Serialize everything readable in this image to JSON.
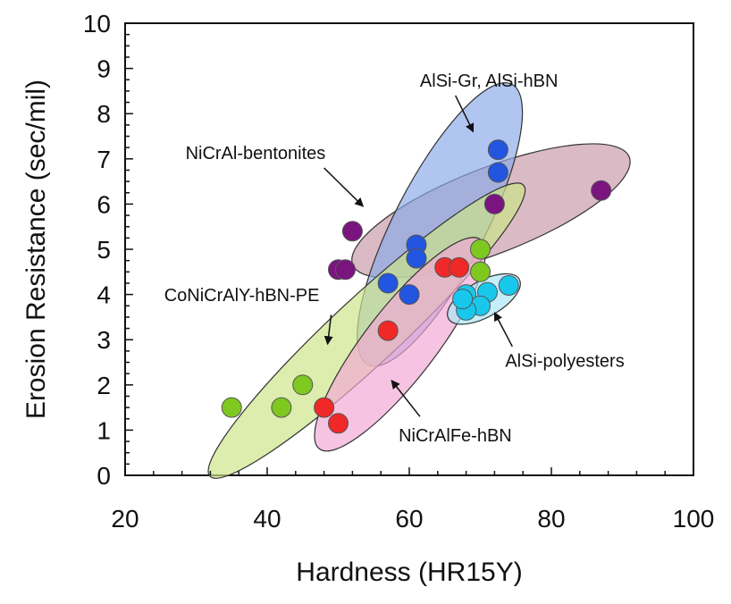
{
  "chart_data": {
    "type": "scatter",
    "xlabel": "Hardness (HR15Y)",
    "ylabel": "Erosion Resistance (sec/mil)",
    "xlim": [
      20,
      100
    ],
    "ylim": [
      0,
      10
    ],
    "x_ticks": [
      "20",
      "40",
      "60",
      "80",
      "100"
    ],
    "y_ticks": [
      "0",
      "1",
      "2",
      "3",
      "4",
      "5",
      "6",
      "7",
      "8",
      "9",
      "10"
    ],
    "grid": false,
    "legend": "none",
    "series": [
      {
        "name": "NiCrAl-bentonites",
        "color": "#7a1580",
        "fill": "#c99aaa",
        "points": [
          [
            52,
            5.4
          ],
          [
            50,
            4.55
          ],
          [
            51,
            4.55
          ],
          [
            72,
            6.0
          ],
          [
            87,
            6.3
          ]
        ]
      },
      {
        "name": "AlSi-Gr, AlSi-hBN",
        "color": "#2255e0",
        "fill": "#8aaae8",
        "points": [
          [
            72.5,
            7.2
          ],
          [
            72.5,
            6.7
          ],
          [
            61,
            5.1
          ],
          [
            61,
            4.8
          ],
          [
            57,
            4.25
          ],
          [
            60,
            4.0
          ]
        ]
      },
      {
        "name": "CoNiCrAlY-hBN-PE",
        "color": "#7ec820",
        "fill": "#cbe486",
        "points": [
          [
            35,
            1.5
          ],
          [
            42,
            1.5
          ],
          [
            45,
            2.0
          ],
          [
            70,
            5.0
          ],
          [
            70,
            4.5
          ]
        ]
      },
      {
        "name": "NiCrAlFe-hBN",
        "color": "#f02828",
        "fill": "#f2a8d4",
        "points": [
          [
            48,
            1.5
          ],
          [
            50,
            1.15
          ],
          [
            57,
            3.2
          ],
          [
            65,
            4.6
          ],
          [
            67,
            4.6
          ]
        ]
      },
      {
        "name": "AlSi-polyesters",
        "color": "#18c8ec",
        "fill": "#a8e6f6",
        "points": [
          [
            74,
            4.2
          ],
          [
            71,
            4.05
          ],
          [
            68,
            4.0
          ],
          [
            70,
            3.75
          ],
          [
            68,
            3.65
          ],
          [
            67.5,
            3.9
          ]
        ]
      }
    ],
    "ellipses": [
      {
        "series": "NiCrAl-bentonites",
        "cx": 71.5,
        "cy": 5.85,
        "rx": 19.5,
        "ry": 0.95,
        "angle_data": 3.5
      },
      {
        "series": "AlSi-Gr, AlSi-hBN",
        "cx": 64.3,
        "cy": 5.55,
        "rx": 10.6,
        "ry": 1.05,
        "angle_data": 17.0
      },
      {
        "series": "CoNiCrAlY-hBN-PE",
        "cx": 54.0,
        "cy": 3.2,
        "rx": 22.3,
        "ry": 0.75,
        "angle_data": 8.3
      },
      {
        "series": "NiCrAlFe-hBN",
        "cx": 58.7,
        "cy": 2.9,
        "rx": 11.6,
        "ry": 0.8,
        "angle_data": 11.5
      },
      {
        "series": "AlSi-polyesters",
        "cx": 70.5,
        "cy": 3.9,
        "rx": 5.0,
        "ry": 0.4,
        "angle_data": 5.0
      }
    ],
    "annotations": [
      {
        "text": "AlSi-Gr, AlSi-hBN",
        "anchor_data": [
          61.5,
          8.6
        ],
        "arrow_from": [
          66.5,
          8.4
        ],
        "arrow_to": [
          69.0,
          7.6
        ]
      },
      {
        "text": "NiCrAl-bentonites",
        "anchor_data": [
          28.5,
          7.0
        ],
        "arrow_from": [
          48.0,
          6.8
        ],
        "arrow_to": [
          53.5,
          5.95
        ]
      },
      {
        "text": "CoNiCrAlY-hBN-PE",
        "anchor_data": [
          25.5,
          3.85
        ],
        "arrow_from": [
          49.0,
          3.55
        ],
        "arrow_to": [
          48.5,
          2.9
        ]
      },
      {
        "text": "AlSi-polyesters",
        "anchor_data": [
          73.5,
          2.4
        ],
        "arrow_from": [
          74.5,
          2.85
        ],
        "arrow_to": [
          72.0,
          3.6
        ]
      },
      {
        "text": "NiCrAlFe-hBN",
        "anchor_data": [
          58.5,
          0.75
        ],
        "arrow_from": [
          61.5,
          1.3
        ],
        "arrow_to": [
          57.5,
          2.1
        ]
      }
    ]
  }
}
